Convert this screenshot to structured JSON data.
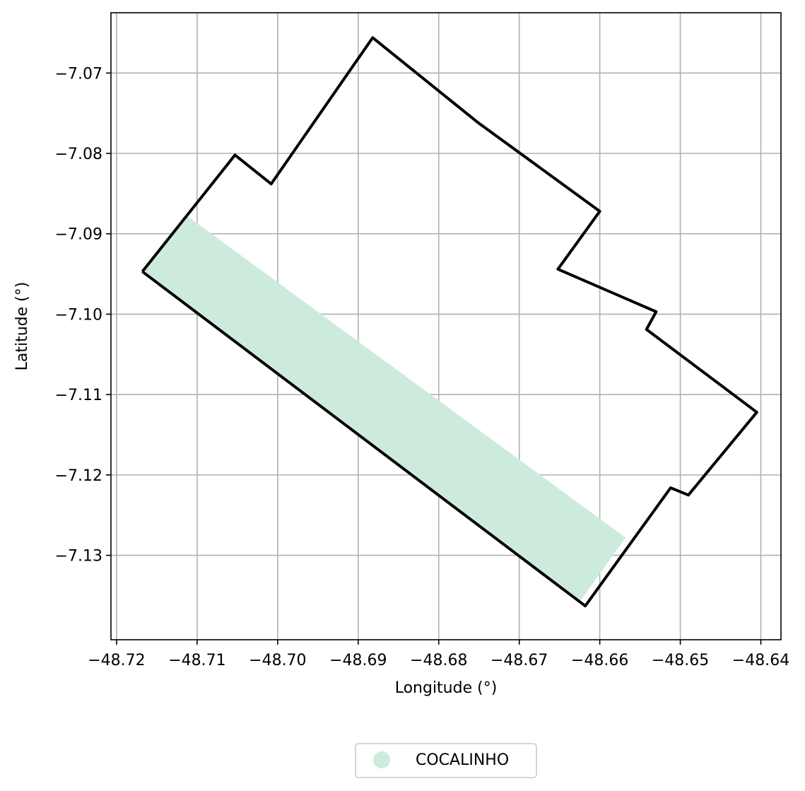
{
  "chart_data": {
    "type": "map",
    "xlabel": "Longitude (°)",
    "ylabel": "Latitude (°)",
    "xlim": [
      -48.7207,
      -48.6375
    ],
    "ylim": [
      -7.1405,
      -7.0625
    ],
    "xticks": [
      -48.72,
      -48.71,
      -48.7,
      -48.69,
      -48.68,
      -48.67,
      -48.66,
      -48.65,
      -48.64
    ],
    "xtick_labels": [
      "−48.72",
      "−48.71",
      "−48.70",
      "−48.69",
      "−48.68",
      "−48.67",
      "−48.66",
      "−48.65",
      "−48.64"
    ],
    "yticks": [
      -7.07,
      -7.08,
      -7.09,
      -7.1,
      -7.11,
      -7.12,
      -7.13
    ],
    "ytick_labels": [
      "−7.07",
      "−7.08",
      "−7.09",
      "−7.10",
      "−7.11",
      "−7.12",
      "−7.13"
    ],
    "grid": true,
    "legend_placement": "bottom-center",
    "series": [
      {
        "name": "COCALINHO",
        "color": "#cdebdd",
        "type": "filled-polygon",
        "points": [
          [
            -48.7168,
            -7.0947
          ],
          [
            -48.7112,
            -7.0878
          ],
          [
            -48.6568,
            -7.1278
          ],
          [
            -48.6625,
            -7.1358
          ],
          [
            -48.6618,
            -7.1363
          ]
        ]
      }
    ],
    "boundary": {
      "color": "#000000",
      "points": [
        [
          -48.7168,
          -7.0947
        ],
        [
          -48.7053,
          -7.0802
        ],
        [
          -48.7008,
          -7.0838
        ],
        [
          -48.6882,
          -7.0656
        ],
        [
          -48.6752,
          -7.0761
        ],
        [
          -48.66,
          -7.0872
        ],
        [
          -48.6652,
          -7.0944
        ],
        [
          -48.653,
          -7.0997
        ],
        [
          -48.6542,
          -7.1019
        ],
        [
          -48.6405,
          -7.1122
        ],
        [
          -48.649,
          -7.1225
        ],
        [
          -48.6512,
          -7.1216
        ],
        [
          -48.6618,
          -7.1363
        ],
        [
          -48.7168,
          -7.0947
        ]
      ]
    }
  }
}
